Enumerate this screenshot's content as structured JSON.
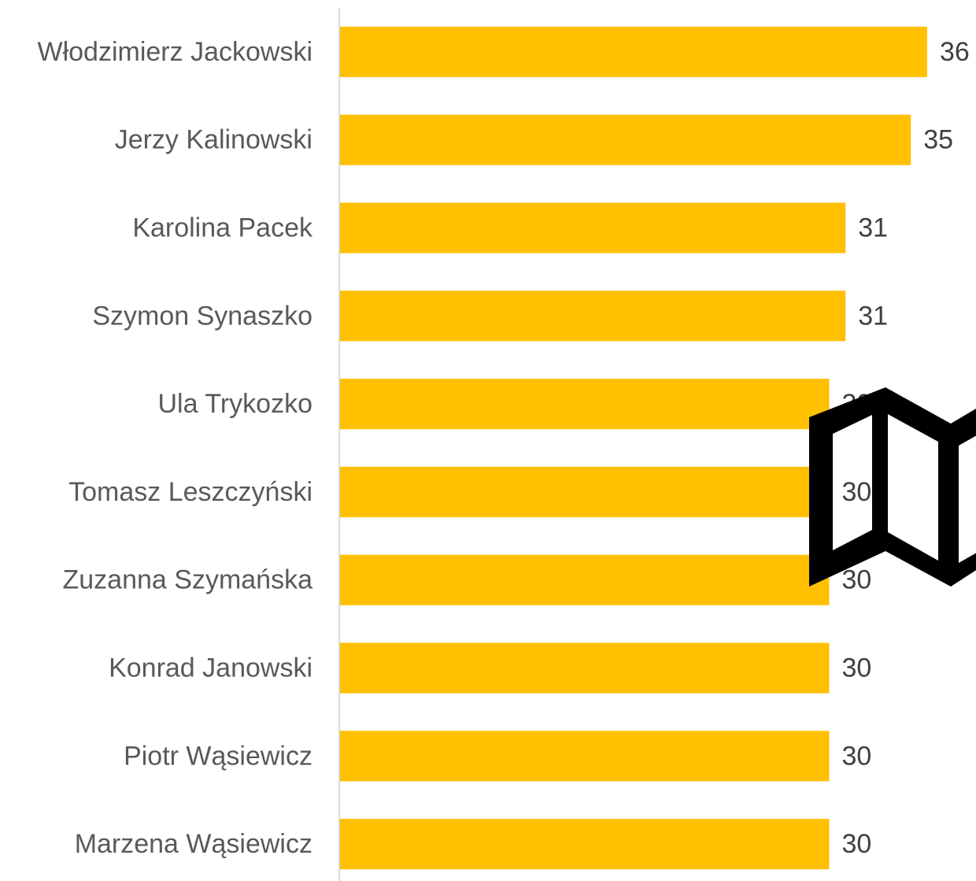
{
  "chart_data": {
    "type": "bar",
    "orientation": "horizontal",
    "title": "",
    "xlabel": "",
    "ylabel": "",
    "categories": [
      "Włodzimierz Jackowski",
      "Jerzy Kalinowski",
      "Karolina Pacek",
      "Szymon Synaszko",
      "Ula Trykozko",
      "Tomasz Leszczyński",
      "Zuzanna Szymańska",
      "Konrad Janowski",
      "Piotr Wąsiewicz",
      "Marzena Wąsiewicz"
    ],
    "values": [
      36,
      35,
      31,
      31,
      30,
      30,
      30,
      30,
      30,
      30
    ],
    "xlim": [
      0,
      36
    ],
    "grid": false,
    "legend": "none",
    "data_labels": true,
    "bar_color": "#FFC000",
    "axis_color": "#D9D9D9"
  },
  "decoration": {
    "icon": "folded-map-icon",
    "icon_color": "#000000"
  }
}
